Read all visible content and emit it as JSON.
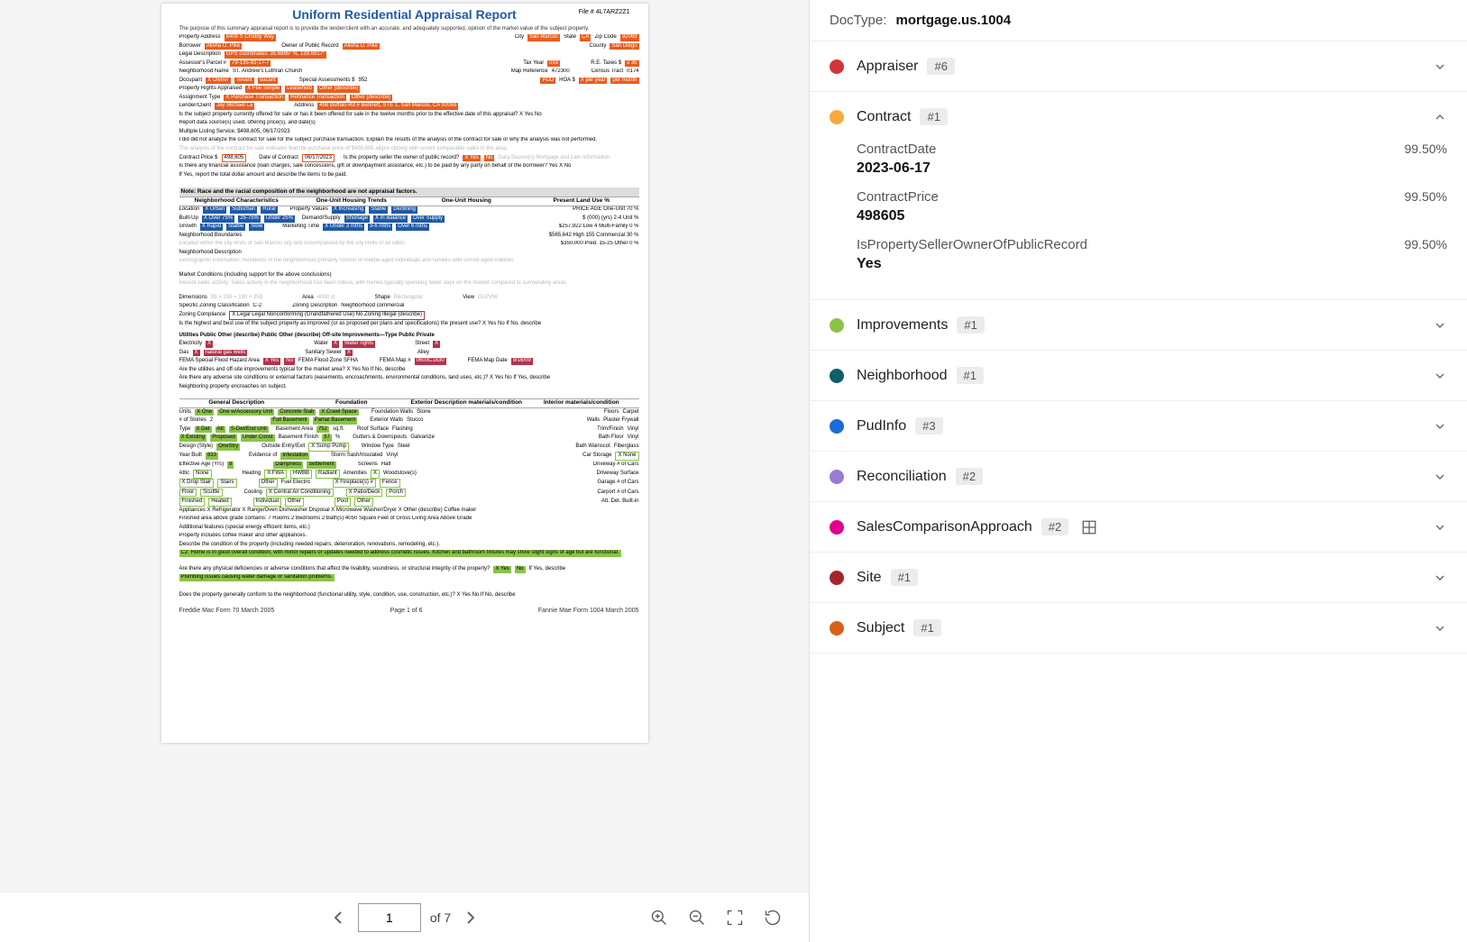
{
  "docTypeLabel": "DocType:",
  "docTypeValue": "mortgage.us.1004",
  "document": {
    "title": "Uniform Residential Appraisal Report",
    "fileNoLabel": "File #",
    "fileNo": "4L7ARZ2Z1",
    "purposeLine": "The purpose of this summary appraisal report is to provide the lender/client with an accurate, and adequately supported, opinion of the market value of the subject property.",
    "propertyAddressLabel": "Property Address",
    "propertyAddress": "8409 S Croddy Way",
    "cityLabel": "City",
    "city": "San Marcos",
    "stateLabel": "State",
    "state": "CA",
    "zipLabel": "Zip Code",
    "zip": "92069",
    "borrowerLabel": "Borrower",
    "borrower": "Alisha U. Pike",
    "ownerLabel": "Owner of Public Record",
    "owner": "Alisha U. Pike",
    "countyLabel": "County",
    "county": "San Diego",
    "legalDescLabel": "Legal Description",
    "legalDesc": "GPS coordinates: 35.6895° N, 139.6917°",
    "assessorLabel": "Assessor's Parcel #",
    "assessor": "79-135-93-17-7",
    "taxYearLabel": "Tax Year",
    "taxYear": "019",
    "reTaxesLabel": "R.E. Taxes $",
    "reTaxes": "x 35",
    "neighborhoodNameLabel": "Neighborhood Name",
    "neighborhoodName": "ST. Andrew's Luthran Church",
    "mapRefLabel": "Map Reference",
    "mapRef": "472300",
    "censusTractLabel": "Census Tract",
    "censusTract": "0174",
    "occupantLabel": "Occupant",
    "specialAssessLabel": "Special Assessments $",
    "specialAssess": "952",
    "propertyRightsLabel": "Property Rights Appraised",
    "assignmentTypeLabel": "Assignment Type",
    "lenderLabel": "Lender/Client",
    "lender": "Jay Michael La",
    "lenderAddrLabel": "Address",
    "lenderAddr": "498 Buffalo Rd # Bennett, STE 1, San Marcos, CA 92069",
    "offeredLine": "Is the subject property currently offered for sale or has it been offered for sale in the twelve months prior to the effective date of this appraisal?  X Yes   No",
    "reportSourceLine": "Report data source(s) used, offering price(s), and date(s)",
    "mlsLine": "Multiple Listing Service, $498,605, 06/17/2023",
    "analyzeLine": "I  did   did not analyze the contract for sale for the subject purchase transaction. Explain the results of the analysis of the contract for sale or why the analysis was not performed.",
    "analysisFaded": "The analysis of the contract for sale indicates that the purchase price of $498,605 aligns closely with recent comparable sales in the area.",
    "contractPriceLabel": "Contract Price $",
    "contractPrice": "498,605",
    "contractDateLabel": "Date of Contract",
    "contractDate": "06/17/2023",
    "sellerOwnerLine": "Is the property seller the owner of public record?",
    "dataSourceLine": "Data Source(s) Mortgage and Lien Information",
    "financialAssistLine": "Is there any financial assistance (loan charges, sale concessions, gift or downpayment assistance, etc.) to be paid by any party on behalf of the borrower?   Yes  X No",
    "financialAssistLine2": "If Yes, report the total dollar amount and describe the items to be paid.",
    "noteRace": "Note: Race and the racial composition of the neighborhood are not appraisal factors.",
    "nbhdCharLabel": "Neighborhood Characteristics",
    "oneUnitTrendsLabel": "One-Unit Housing Trends",
    "oneUnitHousingLabel": "One-Unit Housing",
    "presentLandUseLabel": "Present Land Use %",
    "nbhdBoundariesLabel": "Neighborhood Boundaries",
    "nbhdBoundaries": "Located within the city limits of San Marcos city and encompassed by the city limits of all sides.",
    "nbhdDescLabel": "Neighborhood Description",
    "nbhdDesc": "Demographic information: Residents of the neighborhood primarily consist of middle-aged individuals and families with school-aged children.",
    "marketCondLabel": "Market Conditions (including support for the above conclusions)",
    "marketCond": "Recent sales activity: Sales activity in the neighborhood has been robust, with homes typically spending fewer days on the market compared to surrounding areas.",
    "dimensionsLabel": "Dimensions",
    "dimensions": "89 × 155 = 190 × 259",
    "areaLabel": "Area",
    "area": "4000 sf",
    "shapeLabel": "Shape",
    "shape": "Rectangular",
    "viewLabel": "View",
    "view": "GLPVW",
    "zoningClassLabel": "Specific Zoning Classification",
    "zoningClass": "C-2",
    "zoningDescLabel": "Zoning Description",
    "zoningDesc": "Neighborhood commercial",
    "zoningCompLabel": "Zoning Compliance",
    "zoningComp": "X Legal   Legal Nonconforming (Grandfathered Use)   No Zoning   Illegal (describe)",
    "highestBestLine": "Is the highest and best use of the subject property as improved (or as proposed per plans and specifications) the present use?  X Yes   No  If No, describe",
    "utilitiesHeader": "Utilities      Public  Other (describe)                         Public  Other (describe)             Off-site Improvements—Type      Public  Private",
    "utilElec": "Electricity",
    "utilWater": "Water",
    "utilWaterRights": "Water rights",
    "utilStreet": "Street",
    "utilGas": "Gas",
    "utilGasDesc": "natural gas wells",
    "utilSewer": "Sanitary Sewer",
    "utilAlley": "Alley",
    "femaLine": "FEMA Special Flood Hazard Area",
    "femaZone": "FEMA Flood Zone  SFHA",
    "femaMap": "FEMA Map #",
    "femaMapNo": "0603C1830",
    "femaDate": "FEMA Map Date",
    "femaDateVal": "9/16/09",
    "utilTypicalLine": "Are the utilities and off-site improvements typical for the market area?  X Yes   No  If No, describe",
    "adverseCondLine": "Are there any adverse site conditions or external factors (easements, encroachments, environmental conditions, land uses, etc.)?  X Yes   No  If Yes, describe",
    "adverseCond": "Neighboring property encroaches on subject.",
    "genDescHeader": "General Description",
    "foundationHeader": "Foundation",
    "extDescHeader": "Exterior Description     materials/condition",
    "intHeader": "Interior          materials/condition",
    "unitsLabel": "Units",
    "storiesLabel": "# of Stories",
    "stories": "2",
    "typeLabel": "Type",
    "designLabel": "Design (Style)",
    "yearBuiltLabel": "Year Built",
    "yearBuilt": "833",
    "effAgeLabel": "Effective Age (Yrs)",
    "foundWallsLabel": "Foundation Walls",
    "foundWalls": "Stone",
    "extWallsLabel": "Exterior Walls",
    "extWalls": "Stucco",
    "roofLabel": "Roof Surface",
    "roof": "Flashing",
    "guttersLabel": "Gutters & Downspouts",
    "gutters": "Galvanize",
    "windowLabel": "Window Type",
    "window": "Steel",
    "stormLabel": "Storm Sash/Insulated",
    "storm": "Vinyl",
    "screensLabel": "Screens",
    "screens": "Half",
    "floorsLabel": "Floors",
    "floors": "Carpet",
    "wallsLabel": "Walls",
    "walls": "Plaster Frywall",
    "trimLabel": "Trim/Finish",
    "trim": "Vinyl",
    "bathFloorLabel": "Bath Floor",
    "bathFloor": "Vinyl",
    "bathWainLabel": "Bath Wainscot",
    "bathWain": "Fiberglass",
    "carStorageLabel": "Car Storage",
    "carStorage": "X None",
    "atticLabel": "Attic",
    "heatingLabel": "Heating",
    "coolingLabel": "Cooling",
    "amenitiesLabel": "Amenities",
    "woodstoveLabel": "Woodstove(s)",
    "appliancesLine": "Appliances X Refrigerator  X Range/Oven  Dishwasher  Disposal  X Microwave  Washer/Dryer  X Other (describe)  Coffee maker",
    "finishedAreaLine": "Finished area above grade contains:        7    Rooms        2    Bedrooms        2    Bath(s)        4050    Square Feet of Gross Living Area Above Grade",
    "addlFeaturesLabel": "Additional features (special energy efficient items, etc.)",
    "addlFeatures": "Property includes coffee maker and other appliances.",
    "condDescLabel": "Describe the condition of the property (including needed repairs, deterioration, renovations, remodeling, etc.).",
    "condDesc": "C2: Home is in good overall condition, with minor repairs or updates needed to address cosmetic issues. Kitchen and bathroom fixtures may show slight signs of age but are functional.",
    "physDefLabel": "Are there any physical deficiencies or adverse conditions that affect the livability, soundness, or structural integrity of the property?",
    "physDef": "Plumbing issues causing water damage or sanitation problems.",
    "conformLine": "Does the property generally conform to the neighborhood (functional utility, style, condition, use, construction, etc.)?  X Yes   No  If No, describe",
    "footerLeft": "Freddie Mac Form 70  March 2005",
    "footerCenter": "Page 1 of 6",
    "footerRight": "Fannie Mae Form 1004  March 2005"
  },
  "pager": {
    "current": "1",
    "total": "of 7"
  },
  "groups": [
    {
      "name": "Appraiser",
      "count": "#6",
      "color": "#d13438",
      "expanded": false
    },
    {
      "name": "Contract",
      "count": "#1",
      "color": "#f7a93b",
      "expanded": true,
      "fields": [
        {
          "key": "ContractDate",
          "value": "2023-06-17",
          "conf": "99.50%"
        },
        {
          "key": "ContractPrice",
          "value": "498605",
          "conf": "99.50%"
        },
        {
          "key": "IsPropertySellerOwnerOfPublicRecord",
          "value": "Yes",
          "conf": "99.50%"
        }
      ]
    },
    {
      "name": "Improvements",
      "count": "#1",
      "color": "#8bc34a",
      "expanded": false
    },
    {
      "name": "Neighborhood",
      "count": "#1",
      "color": "#0d5f6b",
      "expanded": false
    },
    {
      "name": "PudInfo",
      "count": "#3",
      "color": "#1a6dd6",
      "expanded": false
    },
    {
      "name": "Reconciliation",
      "count": "#2",
      "color": "#9a7bd4",
      "expanded": false
    },
    {
      "name": "SalesComparisonApproach",
      "count": "#2",
      "color": "#e3008c",
      "expanded": false,
      "hasTableIcon": true
    },
    {
      "name": "Site",
      "count": "#1",
      "color": "#a4262c",
      "expanded": false
    },
    {
      "name": "Subject",
      "count": "#1",
      "color": "#d86018",
      "expanded": false
    }
  ]
}
